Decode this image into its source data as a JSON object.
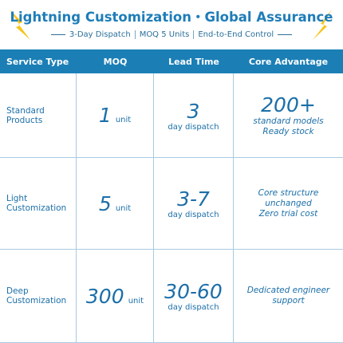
{
  "header": {
    "title": "Lightning Customization・Global Assurance",
    "subtitle": [
      "3-Day Dispatch",
      "MOQ 5 Units",
      "End-to-End Control"
    ]
  },
  "table": {
    "columns": [
      "Service Type",
      "MOQ",
      "Lead Time",
      "Core Advantage"
    ],
    "rows": [
      {
        "type": "Standard Products",
        "moq": {
          "value": "1",
          "unit": "unit"
        },
        "lead": {
          "value": "3",
          "unit": "day dispatch"
        },
        "advantage": {
          "headline": "200+",
          "lines": [
            "standard models",
            "Ready stock"
          ]
        }
      },
      {
        "type": "Light Customization",
        "moq": {
          "value": "5",
          "unit": "unit"
        },
        "lead": {
          "value": "3-7",
          "unit": "day dispatch"
        },
        "advantage": {
          "lines": [
            "Core structure unchanged",
            "Zero trial cost"
          ]
        }
      },
      {
        "type": "Deep Customization",
        "moq": {
          "value": "300",
          "unit": "unit"
        },
        "lead": {
          "value": "30-60",
          "unit": "day dispatch"
        },
        "advantage": {
          "lines": [
            "Dedicated engineer support"
          ]
        }
      }
    ]
  }
}
